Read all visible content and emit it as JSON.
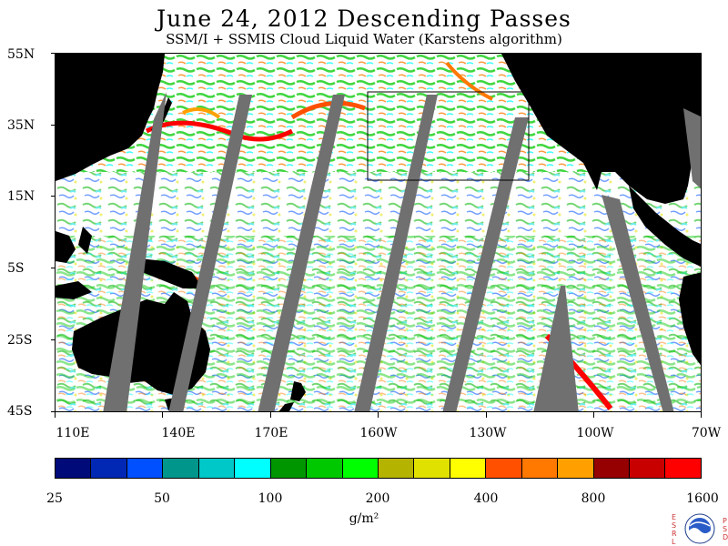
{
  "header": {
    "title": "June 24, 2012  Descending Passes",
    "subtitle": "SSM/I + SSMIS Cloud Liquid Water (Karstens algorithm)"
  },
  "map": {
    "lat_labels": [
      "55N",
      "35N",
      "15N",
      "5S",
      "25S",
      "45S"
    ],
    "lon_labels": [
      "110E",
      "140E",
      "170E",
      "160W",
      "130W",
      "100W",
      "70W"
    ],
    "land_color": "#000000",
    "no_data_color": "#707070",
    "clear_color": "#ffffff"
  },
  "colorbar": {
    "colors": [
      "#000a78",
      "#0028b4",
      "#0050ff",
      "#00968c",
      "#00c8c8",
      "#00ffff",
      "#009600",
      "#00c800",
      "#00ff00",
      "#b4b400",
      "#e1e100",
      "#ffff00",
      "#ff5000",
      "#ff7800",
      "#ffa000",
      "#960000",
      "#c80000",
      "#ff0000"
    ],
    "tick_labels": [
      "25",
      "50",
      "100",
      "200",
      "400",
      "800",
      "1600"
    ],
    "units": "g/m²"
  },
  "logo": {
    "left_letters": "ESRL",
    "right_letters": "PSD",
    "name": "NOAA"
  }
}
